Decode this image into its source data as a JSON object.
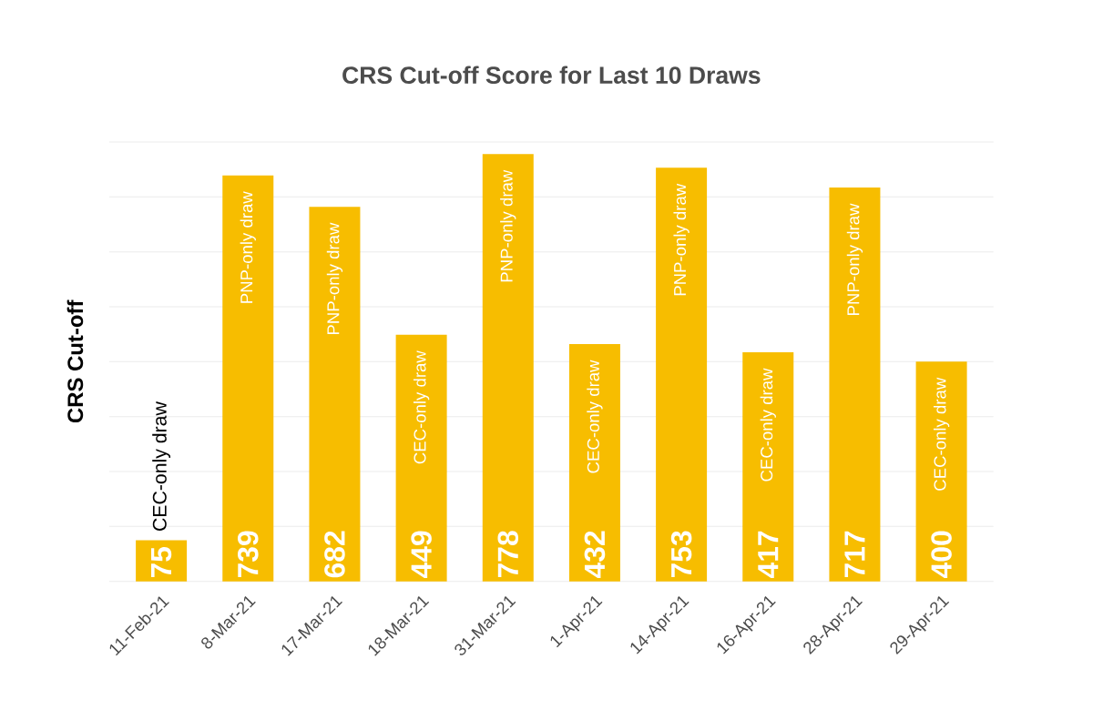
{
  "chart_data": {
    "type": "bar",
    "title": "CRS Cut-off Score for Last 10 Draws",
    "ylabel": "CRS Cut-off",
    "categories": [
      "11-Feb-21",
      "8-Mar-21",
      "17-Mar-21",
      "18-Mar-21",
      "31-Mar-21",
      "1-Apr-21",
      "14-Apr-21",
      "16-Apr-21",
      "28-Apr-21",
      "29-Apr-21"
    ],
    "values": [
      75,
      739,
      682,
      449,
      778,
      432,
      753,
      417,
      717,
      400
    ],
    "color": "#f7bd00",
    "data_labels": true,
    "grid": "y",
    "tick_labels": "x",
    "ylim": [
      0,
      800
    ],
    "yticks": [
      {
        "value": 0,
        "label": null
      },
      {
        "value": 100,
        "label": null
      },
      {
        "value": 200,
        "label": null
      },
      {
        "value": 300,
        "label": null
      },
      {
        "value": 400,
        "label": null
      },
      {
        "value": 500,
        "label": null
      },
      {
        "value": 600,
        "label": null
      },
      {
        "value": 700,
        "label": null
      },
      {
        "value": 800,
        "label": null
      }
    ],
    "annotations": [
      {
        "text": "CEC-only draw",
        "x": "11-Feb-21",
        "y": 75
      },
      {
        "text": "PNP-only draw",
        "x": "8-Mar-21",
        "y": 739
      },
      {
        "text": "PNP-only draw",
        "x": "17-Mar-21",
        "y": 682
      },
      {
        "text": "CEC-only draw",
        "x": "18-Mar-21",
        "y": 449
      },
      {
        "text": "PNP-only draw",
        "x": "31-Mar-21",
        "y": 778
      },
      {
        "text": "CEC-only draw",
        "x": "1-Apr-21",
        "y": 432
      },
      {
        "text": "PNP-only draw",
        "x": "14-Apr-21",
        "y": 753
      },
      {
        "text": "CEC-only draw",
        "x": "16-Apr-21",
        "y": 417
      },
      {
        "text": "PNP-only draw",
        "x": "28-Apr-21",
        "y": 717
      },
      {
        "text": "CEC-only draw",
        "x": "29-Apr-21",
        "y": 400
      }
    ]
  }
}
